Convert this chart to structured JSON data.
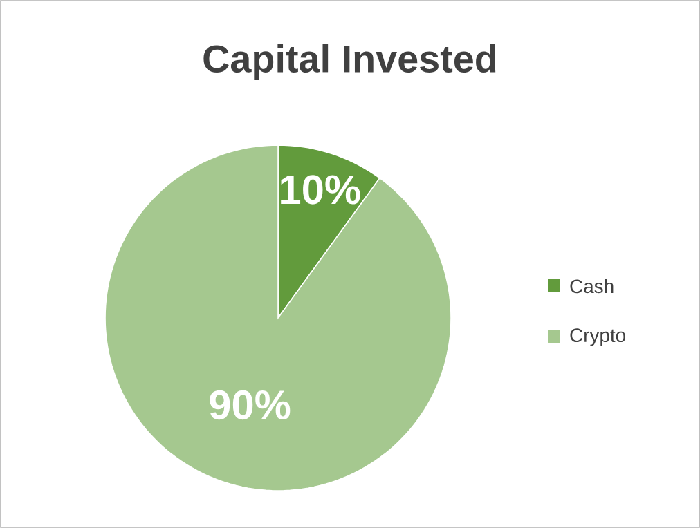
{
  "chart_data": {
    "type": "pie",
    "title": "Capital Invested",
    "categories": [
      "Cash",
      "Crypto"
    ],
    "values": [
      10,
      90
    ],
    "colors": [
      "#629b3c",
      "#a5c88f"
    ],
    "value_labels": [
      "10%",
      "90%"
    ],
    "legend": "right"
  }
}
